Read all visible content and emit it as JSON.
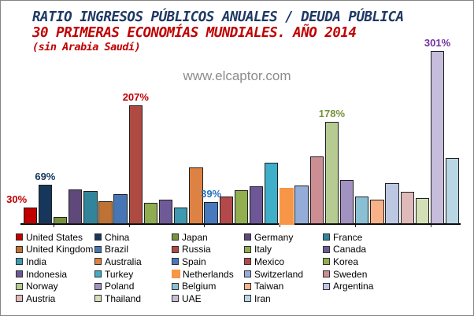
{
  "title": {
    "line1": "RATIO INGRESOS PÚBLICOS ANUALES / DEUDA PÚBLICA",
    "line2": "30 PRIMERAS ECONOMÍAS MUNDIALES. AÑO 2014",
    "line3": "(sin Arabia Saudí)",
    "line1_color": "#1F3864",
    "line2_color": "#C00000",
    "line3_color": "#C00000"
  },
  "watermark": "www.elcaptor.com",
  "chart_data": {
    "type": "bar",
    "title": "RATIO INGRESOS PÚBLICOS ANUALES / DEUDA PÚBLICA",
    "subtitle": "30 PRIMERAS ECONOMÍAS MUNDIALES. AÑO 2014 (sin Arabia Saudí)",
    "unit": "%",
    "ylim": [
      0,
      310
    ],
    "grid": false,
    "y_axis_visible": false,
    "legend_position": "bottom",
    "categories": [
      "United States",
      "China",
      "Japan",
      "Germany",
      "France",
      "United Kingdom",
      "Brazil",
      "Russia",
      "Italy",
      "Canada",
      "India",
      "Australia",
      "Spain",
      "Mexico",
      "Korea",
      "Indonesia",
      "Turkey",
      "Netherlands",
      "Switzerland",
      "Sweden",
      "Norway",
      "Poland",
      "Belgium",
      "Taiwan",
      "Argentina",
      "Austria",
      "Thailand",
      "UAE",
      "Iran"
    ],
    "values": [
      30,
      69,
      13,
      61,
      58,
      40,
      52,
      207,
      37,
      43,
      30,
      99,
      39,
      48,
      59,
      66,
      107,
      64,
      68,
      118,
      178,
      77,
      48,
      43,
      72,
      57,
      46,
      301,
      115
    ],
    "bars": [
      {
        "country": "United States",
        "value": 30,
        "color": "#C00000",
        "label": "30%",
        "label_color": "#C00000",
        "label_dx": -17
      },
      {
        "country": "China",
        "value": 69,
        "color": "#16365C",
        "label": "69%",
        "label_color": "#17375D"
      },
      {
        "country": "Japan",
        "value": 13,
        "color": "#76923C"
      },
      {
        "country": "Germany",
        "value": 61,
        "color": "#5F497A"
      },
      {
        "country": "France",
        "value": 58,
        "color": "#31859B"
      },
      {
        "country": "United Kingdom",
        "value": 40,
        "color": "#BE7334"
      },
      {
        "country": "Brazil",
        "value": 52,
        "color": "#4676B5"
      },
      {
        "country": "Russia",
        "value": 207,
        "color": "#AE4A42",
        "label": "207%",
        "label_color": "#C00000"
      },
      {
        "country": "Italy",
        "value": 37,
        "color": "#8FAC51"
      },
      {
        "country": "Canada",
        "value": 43,
        "color": "#6F5A98"
      },
      {
        "country": "India",
        "value": 30,
        "color": "#3D9AB1"
      },
      {
        "country": "Australia",
        "value": 99,
        "color": "#DE8244"
      },
      {
        "country": "Spain",
        "value": 39,
        "color": "#4779BE",
        "label": "39%",
        "label_color": "#2573BE"
      },
      {
        "country": "Mexico",
        "value": 48,
        "color": "#B4494B"
      },
      {
        "country": "Korea",
        "value": 59,
        "color": "#92AF4F"
      },
      {
        "country": "Indonesia",
        "value": 66,
        "color": "#6D5796"
      },
      {
        "country": "Turkey",
        "value": 107,
        "color": "#3FAEC9"
      },
      {
        "country": "Netherlands",
        "value": 64,
        "color": "#F79646",
        "highlight": true
      },
      {
        "country": "Switzerland",
        "value": 68,
        "color": "#94ADD8"
      },
      {
        "country": "Sweden",
        "value": 118,
        "color": "#CC8D93"
      },
      {
        "country": "Norway",
        "value": 178,
        "color": "#B6CB92",
        "label": "178%",
        "label_color": "#77933C"
      },
      {
        "country": "Poland",
        "value": 77,
        "color": "#A292C1"
      },
      {
        "country": "Belgium",
        "value": 48,
        "color": "#8BC0D4"
      },
      {
        "country": "Taiwan",
        "value": 43,
        "color": "#F9B288"
      },
      {
        "country": "Argentina",
        "value": 72,
        "color": "#BCC7E2"
      },
      {
        "country": "Austria",
        "value": 57,
        "color": "#DFBAB8"
      },
      {
        "country": "Thailand",
        "value": 46,
        "color": "#D3E0B5"
      },
      {
        "country": "UAE",
        "value": 301,
        "color": "#C6BDDC",
        "label": "301%",
        "label_color": "#7030A0"
      },
      {
        "country": "Iran",
        "value": 115,
        "color": "#B9D6E5"
      }
    ]
  }
}
